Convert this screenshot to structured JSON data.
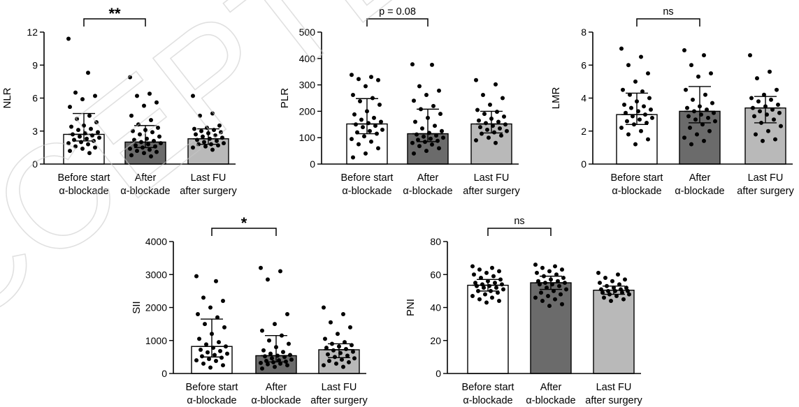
{
  "watermark": "ACCEPTED",
  "chart_data": [
    {
      "type": "bar",
      "ylabel": "NLR",
      "ylim": [
        0,
        12
      ],
      "yticks": [
        "0",
        "3",
        "6",
        "9",
        "12"
      ],
      "categories": [
        "Before start α-blockade",
        "After α-blockade",
        "Last FU after surgery"
      ],
      "category_lines": [
        [
          "Before start",
          "α-blockade"
        ],
        [
          "After",
          "α-blockade"
        ],
        [
          "Last FU",
          "after surgery"
        ]
      ],
      "values": [
        2.7,
        2.0,
        2.3
      ],
      "error_upper": [
        4.6,
        3.5,
        3.2
      ],
      "error_lower": [
        2.1,
        1.5,
        1.8
      ],
      "bar_colors": [
        "#ffffff",
        "#6b6b6b",
        "#b9b9b9"
      ],
      "points": [
        [
          11.4,
          8.3,
          6.5,
          6.2,
          5.9,
          5.2,
          4.4,
          4.1,
          3.8,
          3.5,
          3.4,
          3.2,
          3.1,
          2.9,
          2.8,
          2.7,
          2.6,
          2.5,
          2.4,
          2.3,
          2.2,
          2.1,
          2.0,
          1.9,
          1.8,
          1.6,
          1.5,
          1.4,
          1.2,
          1.0
        ],
        [
          7.9,
          6.4,
          6.2,
          5.6,
          5.3,
          4.4,
          4.0,
          3.6,
          3.3,
          3.1,
          3.0,
          2.9,
          2.7,
          2.5,
          2.3,
          2.2,
          2.1,
          2.0,
          1.9,
          1.8,
          1.7,
          1.6,
          1.5,
          1.4,
          1.3,
          1.2,
          1.1,
          1.0,
          0.8,
          0.7
        ],
        [
          6.2,
          4.6,
          4.4,
          3.5,
          3.3,
          3.2,
          3.1,
          3.0,
          2.9,
          2.8,
          2.7,
          2.6,
          2.5,
          2.4,
          2.3,
          2.2,
          2.1,
          2.0,
          1.9,
          1.8,
          1.8,
          1.7,
          1.6,
          1.5,
          1.3
        ]
      ],
      "comparison": {
        "from": 0,
        "to": 1,
        "label": "**"
      }
    },
    {
      "type": "bar",
      "ylabel": "PLR",
      "ylim": [
        0,
        500
      ],
      "yticks": [
        "0",
        "100",
        "200",
        "300",
        "400",
        "500"
      ],
      "categories": [
        "Before start α-blockade",
        "After α-blockade",
        "Last FU after surgery"
      ],
      "category_lines": [
        [
          "Before start",
          "α-blockade"
        ],
        [
          "After",
          "α-blockade"
        ],
        [
          "Last FU",
          "after surgery"
        ]
      ],
      "values": [
        152,
        115,
        152
      ],
      "error_upper": [
        248,
        208,
        200
      ],
      "error_lower": [
        115,
        85,
        118
      ],
      "bar_colors": [
        "#ffffff",
        "#6b6b6b",
        "#b9b9b9"
      ],
      "points": [
        [
          338,
          330,
          322,
          318,
          295,
          262,
          250,
          238,
          225,
          200,
          188,
          175,
          168,
          160,
          155,
          150,
          145,
          140,
          130,
          125,
          120,
          115,
          105,
          95,
          85,
          75,
          60,
          40,
          25
        ],
        [
          378,
          376,
          295,
          278,
          262,
          240,
          220,
          208,
          190,
          175,
          160,
          145,
          135,
          125,
          118,
          112,
          108,
          104,
          100,
          96,
          92,
          88,
          84,
          80,
          74,
          68,
          60,
          50,
          40
        ],
        [
          318,
          302,
          262,
          250,
          225,
          205,
          198,
          190,
          180,
          172,
          165,
          160,
          155,
          150,
          145,
          140,
          135,
          130,
          125,
          120,
          115,
          108,
          100,
          90,
          80
        ]
      ],
      "comparison": {
        "from": 0,
        "to": 1,
        "label": "p = 0.08"
      }
    },
    {
      "type": "bar",
      "ylabel": "LMR",
      "ylim": [
        0,
        8
      ],
      "yticks": [
        "0",
        "2",
        "4",
        "6",
        "8"
      ],
      "categories": [
        "Before start α-blockade",
        "After α-blockade",
        "Last FU after surgery"
      ],
      "category_lines": [
        [
          "Before start",
          "α-blockade"
        ],
        [
          "After",
          "α-blockade"
        ],
        [
          "Last FU",
          "after surgery"
        ]
      ],
      "values": [
        3.0,
        3.2,
        3.4
      ],
      "error_upper": [
        4.3,
        4.7,
        4.1
      ],
      "error_lower": [
        2.4,
        2.5,
        2.5
      ],
      "bar_colors": [
        "#ffffff",
        "#6b6b6b",
        "#b9b9b9"
      ],
      "points": [
        [
          7.0,
          6.5,
          6.0,
          5.5,
          5.0,
          4.5,
          4.4,
          4.2,
          4.0,
          3.8,
          3.6,
          3.5,
          3.4,
          3.3,
          3.2,
          3.1,
          3.0,
          2.9,
          2.8,
          2.7,
          2.6,
          2.5,
          2.4,
          2.2,
          2.0,
          1.8,
          1.5,
          1.2
        ],
        [
          6.9,
          6.6,
          6.0,
          5.5,
          5.3,
          4.5,
          4.2,
          3.9,
          3.7,
          3.5,
          3.4,
          3.3,
          3.2,
          3.1,
          3.0,
          2.9,
          2.8,
          2.7,
          2.6,
          2.4,
          2.2,
          2.0,
          1.8,
          1.6,
          1.4,
          1.2
        ],
        [
          6.6,
          5.6,
          5.2,
          4.5,
          4.2,
          4.0,
          3.9,
          3.8,
          3.6,
          3.5,
          3.4,
          3.3,
          3.2,
          3.1,
          3.0,
          2.9,
          2.7,
          2.5,
          2.3,
          2.0,
          1.8,
          1.5,
          1.4
        ]
      ],
      "comparison": {
        "from": 0,
        "to": 1,
        "label": "ns"
      }
    },
    {
      "type": "bar",
      "ylabel": "SII",
      "ylim": [
        0,
        4000
      ],
      "yticks": [
        "0",
        "1000",
        "2000",
        "3000",
        "4000"
      ],
      "categories": [
        "Before start α-blockade",
        "After α-blockade",
        "Last FU after surgery"
      ],
      "category_lines": [
        [
          "Before start",
          "α-blockade"
        ],
        [
          "After",
          "α-blockade"
        ],
        [
          "Last FU",
          "after surgery"
        ]
      ],
      "values": [
        820,
        540,
        720
      ],
      "error_upper": [
        1650,
        1150,
        900
      ],
      "error_lower": [
        500,
        350,
        480
      ],
      "bar_colors": [
        "#ffffff",
        "#6b6b6b",
        "#b9b9b9"
      ],
      "points": [
        [
          2950,
          2800,
          2300,
          2200,
          2000,
          1800,
          1700,
          1500,
          1400,
          1200,
          1050,
          950,
          880,
          820,
          780,
          720,
          680,
          640,
          600,
          560,
          520,
          480,
          440,
          400,
          380,
          300,
          250,
          180
        ],
        [
          3200,
          3100,
          2850,
          1800,
          1500,
          1300,
          1150,
          1000,
          900,
          800,
          700,
          650,
          600,
          560,
          540,
          520,
          500,
          460,
          420,
          400,
          380,
          360,
          340,
          320,
          300,
          280,
          250,
          200,
          150
        ],
        [
          2000,
          1800,
          1550,
          1400,
          1200,
          1050,
          950,
          900,
          860,
          820,
          780,
          740,
          700,
          660,
          620,
          580,
          540,
          500,
          460,
          420,
          380,
          340,
          300,
          250,
          200
        ]
      ],
      "comparison": {
        "from": 0,
        "to": 1,
        "label": "*"
      }
    },
    {
      "type": "bar",
      "ylabel": "PNI",
      "ylim": [
        0,
        80
      ],
      "yticks": [
        "0",
        "20",
        "40",
        "60",
        "80"
      ],
      "categories": [
        "Before start α-blockade",
        "After α-blockade",
        "Last FU after surgery"
      ],
      "category_lines": [
        [
          "Before start",
          "α-blockade"
        ],
        [
          "After",
          "α-blockade"
        ],
        [
          "Last FU",
          "after surgery"
        ]
      ],
      "values": [
        53.5,
        55,
        50.5
      ],
      "error_upper": [
        57,
        59,
        53
      ],
      "error_lower": [
        50,
        51,
        48
      ],
      "bar_colors": [
        "#ffffff",
        "#6b6b6b",
        "#b9b9b9"
      ],
      "points": [
        [
          65,
          64,
          63,
          62,
          61,
          60,
          59,
          58,
          57,
          56,
          55,
          55,
          54,
          54,
          53,
          53,
          52,
          52,
          51,
          50,
          50,
          49,
          48,
          47,
          46,
          45,
          44,
          43
        ],
        [
          66,
          65,
          64,
          63,
          62,
          61,
          60,
          59,
          58,
          57,
          56,
          56,
          55,
          55,
          54,
          54,
          53,
          52,
          51,
          50,
          49,
          48,
          47,
          46,
          45,
          44,
          42,
          41
        ],
        [
          61,
          60,
          58,
          57,
          56,
          55,
          54,
          53,
          52,
          52,
          51,
          51,
          50,
          50,
          50,
          49,
          49,
          48,
          48,
          47,
          46,
          45,
          44
        ]
      ],
      "comparison": {
        "from": 0,
        "to": 1,
        "label": "ns"
      }
    }
  ]
}
